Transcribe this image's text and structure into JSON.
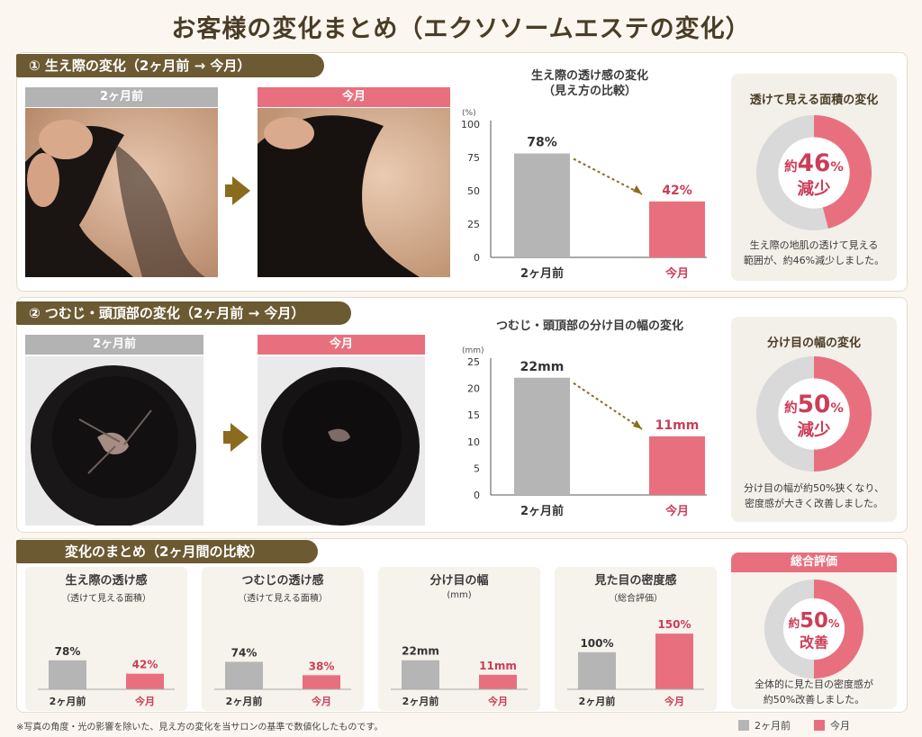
{
  "title": "お客様の変化まとめ（エクソソームエステの変化）",
  "colors": {
    "before": "#b5b5b5",
    "after": "#e8707e",
    "header": "#6b5a32",
    "accent": "#cc3d57",
    "arrow": "#8b6b1e"
  },
  "section1": {
    "header": "① 生え際の変化（2ヶ月前 → 今月）",
    "before_label": "2ヶ月前",
    "after_label": "今月",
    "chart_title_line1": "生え際の透け感の変化",
    "chart_title_line2": "（見え方の比較）",
    "card": {
      "title": "透けて見える面積の変化",
      "prefix": "約",
      "value": "46",
      "unit": "%",
      "suffix": "減少",
      "percent": 46,
      "note_line1": "生え際の地肌の透けて見える",
      "note_line2": "範囲が、約46%減少しました。"
    }
  },
  "section2": {
    "header": "② つむじ・頭頂部の変化（2ヶ月前 → 今月）",
    "before_label": "2ヶ月前",
    "after_label": "今月",
    "chart_title": "つむじ・頭頂部の分け目の幅の変化",
    "card": {
      "title": "分け目の幅の変化",
      "prefix": "約",
      "value": "50",
      "unit": "%",
      "suffix": "減少",
      "percent": 50,
      "note_line1": "分け目の幅が約50%狭くなり、",
      "note_line2": "密度感が大きく改善しました。"
    }
  },
  "section3": {
    "header": "変化のまとめ（2ヶ月間の比較）",
    "overall": {
      "header": "総合評価",
      "prefix": "約",
      "value": "50",
      "unit": "%",
      "suffix": "改善",
      "percent": 50,
      "note_line1": "全体的に見た目の密度感が",
      "note_line2": "約50%改善しました。"
    }
  },
  "chart_data": [
    {
      "type": "bar",
      "title": "生え際の透け感の変化（見え方の比較）",
      "unit_label": "(%)",
      "categories": [
        "2ヶ月前",
        "今月"
      ],
      "values": [
        78,
        42
      ],
      "value_labels": [
        "78%",
        "42%"
      ],
      "ylim": [
        0,
        100
      ],
      "yticks": [
        0,
        25,
        50,
        75,
        100
      ]
    },
    {
      "type": "pie",
      "title": "透けて見える面積の変化",
      "values": [
        46,
        54
      ]
    },
    {
      "type": "bar",
      "title": "つむじ・頭頂部の分け目の幅の変化",
      "unit_label": "(mm)",
      "categories": [
        "2ヶ月前",
        "今月"
      ],
      "values": [
        22,
        11
      ],
      "value_labels": [
        "22mm",
        "11mm"
      ],
      "ylim": [
        0,
        25
      ],
      "yticks": [
        0,
        5,
        10,
        15,
        20,
        25
      ]
    },
    {
      "type": "pie",
      "title": "分け目の幅の変化",
      "values": [
        50,
        50
      ]
    },
    {
      "type": "bar",
      "title": "生え際の透け感",
      "subtitle": "（透けて見える面積）",
      "categories": [
        "2ヶ月前",
        "今月"
      ],
      "values": [
        78,
        42
      ],
      "value_labels": [
        "78%",
        "42%"
      ],
      "ymax": 160
    },
    {
      "type": "bar",
      "title": "つむじの透け感",
      "subtitle": "（透けて見える面積）",
      "categories": [
        "2ヶ月前",
        "今月"
      ],
      "values": [
        74,
        38
      ],
      "value_labels": [
        "74%",
        "38%"
      ],
      "ymax": 160
    },
    {
      "type": "bar",
      "title": "分け目の幅",
      "subtitle": "(mm)",
      "categories": [
        "2ヶ月前",
        "今月"
      ],
      "values": [
        22,
        11
      ],
      "value_labels": [
        "22mm",
        "11mm"
      ],
      "ymax": 45
    },
    {
      "type": "bar",
      "title": "見た目の密度感",
      "subtitle": "（総合評価）",
      "categories": [
        "2ヶ月前",
        "今月"
      ],
      "values": [
        100,
        150
      ],
      "value_labels": [
        "100%",
        "150%"
      ],
      "ymax": 160
    },
    {
      "type": "pie",
      "title": "総合評価",
      "values": [
        50,
        50
      ]
    }
  ],
  "footnote": "※写真の角度・光の影響を除いた、見え方の変化を当サロンの基準で数値化したものです。",
  "legend": {
    "before": "2ヶ月前",
    "after": "今月"
  }
}
